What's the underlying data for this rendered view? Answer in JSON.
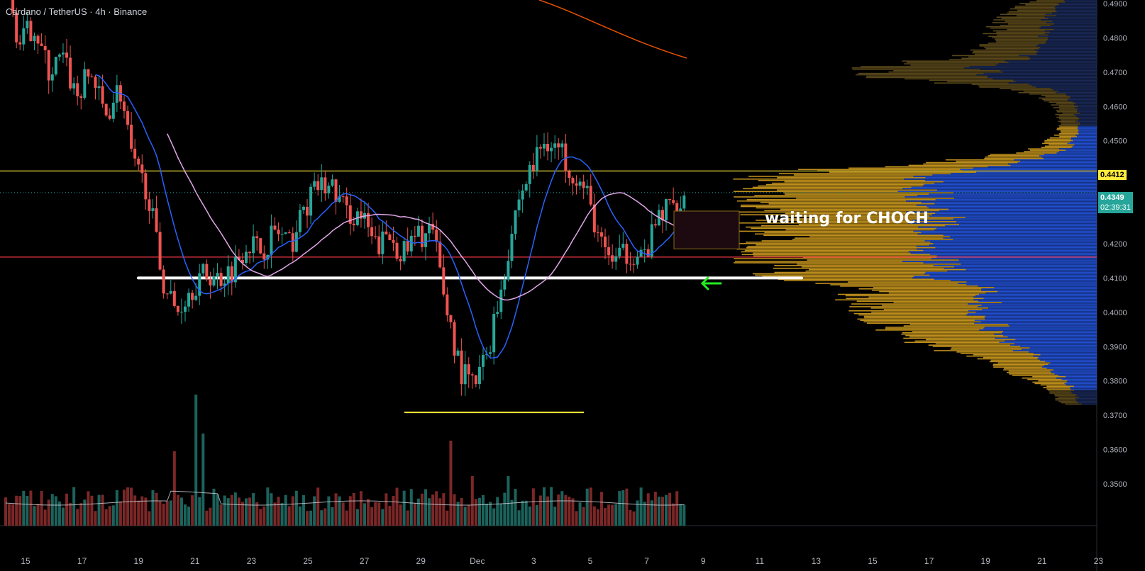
{
  "header": {
    "title": "Cardano / TetherUS · 4h · Binance"
  },
  "annotation": {
    "text": "waiting for CHOCH"
  },
  "price_badges": {
    "level": "0.4412",
    "last": "0.4349",
    "countdown": "02:39:31"
  },
  "colors": {
    "up": "#26a69a",
    "down": "#ef5350",
    "ma_blue": "#2962ff",
    "ma_pink": "#e1a6e8",
    "ma_orange": "#e65100",
    "level_yellow": "#ffeb3b",
    "level_red": "#f23645",
    "vp_gold": "#c8971d",
    "vp_blue": "#2352d8",
    "arrow_green": "#22ee22"
  },
  "chart_data": {
    "type": "candlestick",
    "x_ticks": [
      "15",
      "17",
      "19",
      "21",
      "23",
      "25",
      "27",
      "29",
      "Dec",
      "3",
      "5",
      "7",
      "9",
      "11",
      "13",
      "15",
      "17",
      "19",
      "21",
      "23"
    ],
    "y_ticks": [
      "0.4900",
      "0.4800",
      "0.4700",
      "0.4600",
      "0.4500",
      "0.4400",
      "0.4300",
      "0.4200",
      "0.4100",
      "0.4000",
      "0.3900",
      "0.3800",
      "0.3700",
      "0.3600",
      "0.3500"
    ],
    "ylim": [
      0.34,
      0.491
    ],
    "horizontal_levels": [
      {
        "label": "yellow resistance",
        "price": 0.4412
      },
      {
        "label": "red level",
        "price": 0.4161
      },
      {
        "label": "white support",
        "price": 0.41
      },
      {
        "label": "yellow low",
        "price": 0.37
      }
    ],
    "close_path": [
      [
        0,
        0.495
      ],
      [
        2,
        0.478
      ],
      [
        4,
        0.484
      ],
      [
        6,
        0.47
      ],
      [
        8,
        0.474
      ],
      [
        10,
        0.463
      ],
      [
        12,
        0.47
      ],
      [
        14,
        0.457
      ],
      [
        16,
        0.466
      ],
      [
        18,
        0.442
      ],
      [
        20,
        0.436
      ],
      [
        22,
        0.41
      ],
      [
        24,
        0.4
      ],
      [
        26,
        0.407
      ],
      [
        28,
        0.411
      ],
      [
        30,
        0.41
      ],
      [
        32,
        0.413
      ],
      [
        34,
        0.421
      ],
      [
        36,
        0.418
      ],
      [
        38,
        0.424
      ],
      [
        40,
        0.419
      ],
      [
        42,
        0.43
      ],
      [
        44,
        0.437
      ],
      [
        46,
        0.436
      ],
      [
        48,
        0.429
      ],
      [
        50,
        0.428
      ],
      [
        52,
        0.419
      ],
      [
        54,
        0.422
      ],
      [
        56,
        0.417
      ],
      [
        58,
        0.422
      ],
      [
        60,
        0.424
      ],
      [
        62,
        0.402
      ],
      [
        64,
        0.383
      ],
      [
        66,
        0.378
      ],
      [
        68,
        0.39
      ],
      [
        70,
        0.41
      ],
      [
        72,
        0.432
      ],
      [
        74,
        0.442
      ],
      [
        76,
        0.451
      ],
      [
        78,
        0.447
      ],
      [
        80,
        0.441
      ],
      [
        82,
        0.433
      ],
      [
        84,
        0.418
      ],
      [
        86,
        0.415
      ],
      [
        88,
        0.418
      ],
      [
        90,
        0.416
      ],
      [
        92,
        0.428
      ],
      [
        94,
        0.432
      ],
      [
        96,
        0.435
      ]
    ],
    "volume_profile": "gold/blue horizontal distribution at right side"
  }
}
